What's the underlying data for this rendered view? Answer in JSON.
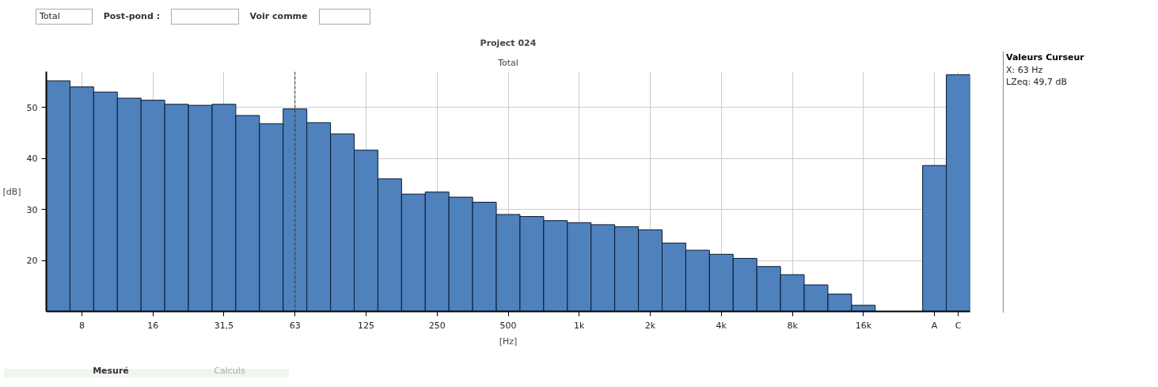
{
  "chart_data": {
    "type": "bar",
    "title": "Project 024",
    "subtitle": "Total",
    "xlabel": "[Hz]",
    "ylabel": "[dB]",
    "categories": [
      null,
      "8",
      null,
      null,
      "16",
      null,
      null,
      "31,5",
      null,
      null,
      "63",
      null,
      null,
      "125",
      null,
      null,
      "250",
      null,
      null,
      "500",
      null,
      null,
      "1k",
      null,
      null,
      "2k",
      null,
      null,
      "4k",
      null,
      null,
      "8k",
      null,
      null,
      "16k",
      null,
      null,
      "A",
      "C"
    ],
    "values": [
      55.2,
      54,
      53,
      51.8,
      51.4,
      50.6,
      50.4,
      50.6,
      48.4,
      46.8,
      49.7,
      47,
      44.8,
      41.6,
      36,
      33,
      33.4,
      32.4,
      31.4,
      29,
      28.6,
      27.8,
      27.4,
      27,
      26.6,
      26,
      23.4,
      22,
      21.2,
      20.4,
      18.8,
      17.2,
      15.2,
      13.4,
      11.2,
      null,
      null,
      38.6,
      56.4
    ],
    "color": "#4f81bd",
    "ylim": [
      10,
      57
    ],
    "yticks": [
      20,
      30,
      40,
      50
    ],
    "grid": true,
    "legend": false,
    "ref_lines": [
      {
        "axis": "x",
        "value": "63",
        "label": null,
        "color": "#333333",
        "line_style": "dashed"
      }
    ],
    "annotations": [
      "Valeurs Curseur",
      "X: 63 Hz",
      "LZeq: 49,7 dB",
      "Total",
      "Post-pond :",
      "Voir comme",
      "Mesuré",
      "Calculs"
    ]
  }
}
